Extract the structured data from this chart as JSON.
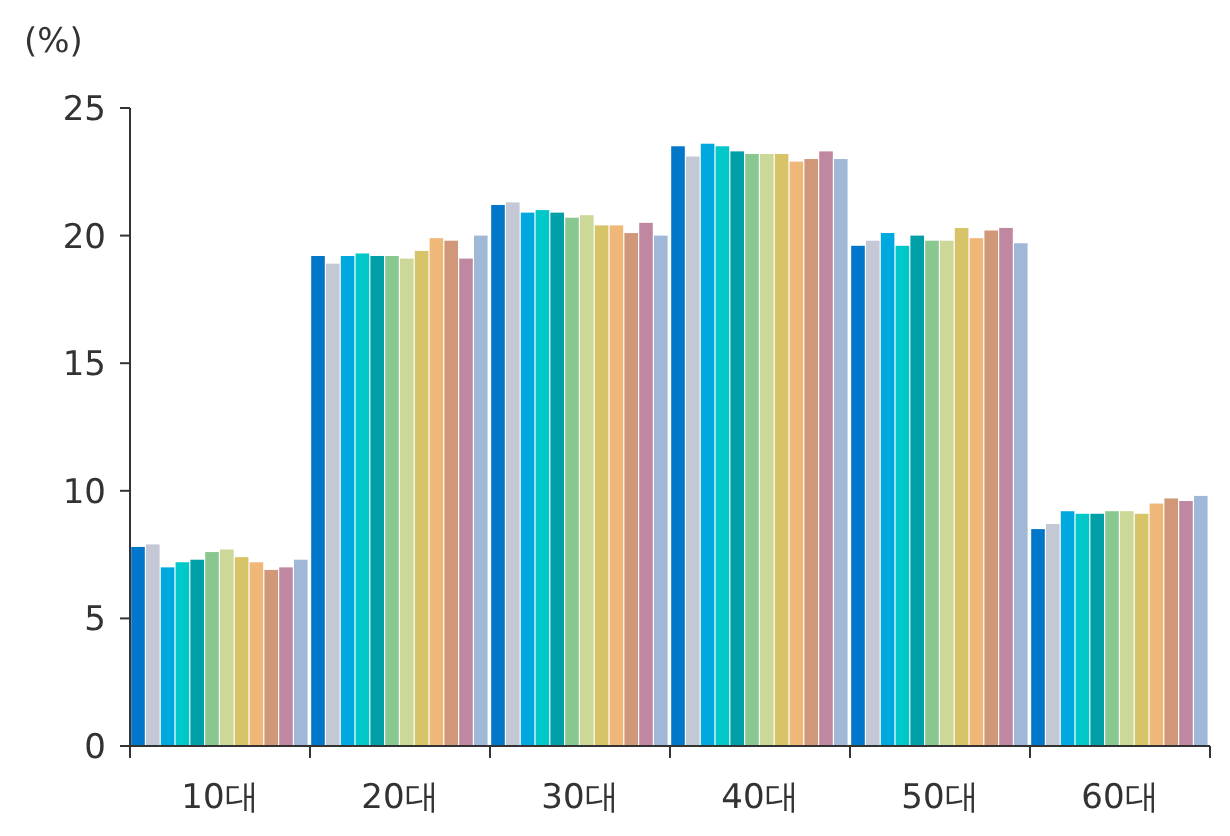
{
  "chart_data": {
    "type": "bar",
    "ylabel": "(%)",
    "categories": [
      "10대",
      "20대",
      "30대",
      "40대",
      "50대",
      "60대"
    ],
    "ylim": [
      0,
      25
    ],
    "yticks": [
      0,
      5,
      10,
      15,
      20,
      25
    ],
    "grid": false,
    "series": [
      {
        "color": "#0077c8",
        "values": [
          7.8,
          19.2,
          21.2,
          23.5,
          19.6,
          8.5
        ]
      },
      {
        "color": "#c4c8d4",
        "values": [
          7.9,
          18.9,
          21.3,
          23.1,
          19.8,
          8.7
        ]
      },
      {
        "color": "#00a8e0",
        "values": [
          7.0,
          19.2,
          20.9,
          23.6,
          20.1,
          9.2
        ]
      },
      {
        "color": "#00c8c8",
        "values": [
          7.2,
          19.3,
          21.0,
          23.5,
          19.6,
          9.1
        ]
      },
      {
        "color": "#00a0a8",
        "values": [
          7.3,
          19.2,
          20.9,
          23.3,
          20.0,
          9.1
        ]
      },
      {
        "color": "#88c890",
        "values": [
          7.6,
          19.2,
          20.7,
          23.2,
          19.8,
          9.2
        ]
      },
      {
        "color": "#ccd898",
        "values": [
          7.7,
          19.1,
          20.8,
          23.2,
          19.8,
          9.2
        ]
      },
      {
        "color": "#d8c468",
        "values": [
          7.4,
          19.4,
          20.4,
          23.2,
          20.3,
          9.1
        ]
      },
      {
        "color": "#f0b878",
        "values": [
          7.2,
          19.9,
          20.4,
          22.9,
          19.9,
          9.5
        ]
      },
      {
        "color": "#d09878",
        "values": [
          6.9,
          19.8,
          20.1,
          23.0,
          20.2,
          9.7
        ]
      },
      {
        "color": "#c088a0",
        "values": [
          7.0,
          19.1,
          20.5,
          23.3,
          20.3,
          9.6
        ]
      },
      {
        "color": "#a0b8d8",
        "values": [
          7.3,
          20.0,
          20.0,
          23.0,
          19.7,
          9.8
        ]
      }
    ]
  }
}
